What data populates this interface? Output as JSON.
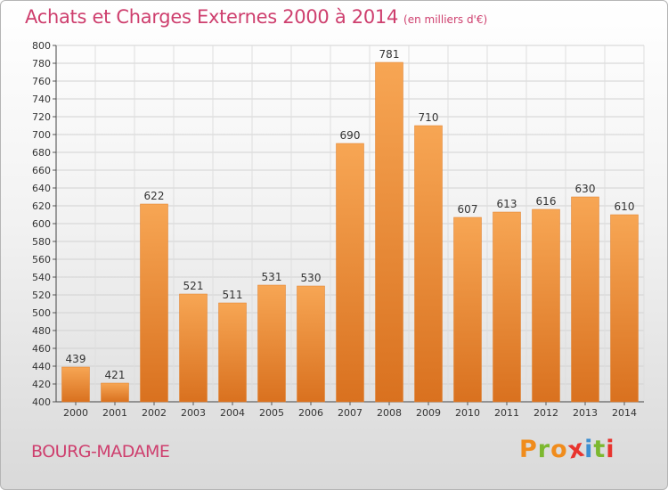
{
  "header": {
    "title": "Achats et Charges Externes 2000 à 2014",
    "subtitle": "(en milliers d'€)"
  },
  "footer": {
    "city": "BOURG-MADAME",
    "brand": "Proxiti",
    "brand_colors": [
      "#f08c1c",
      "#7cb82f",
      "#f08c1c",
      "#e8342e",
      "#3d8fd1",
      "#7cb82f",
      "#e8342e"
    ]
  },
  "chart_data": {
    "type": "bar",
    "title": "Achats et Charges Externes 2000 à 2014",
    "categories": [
      "2000",
      "2001",
      "2002",
      "2003",
      "2004",
      "2005",
      "2006",
      "2007",
      "2008",
      "2009",
      "2010",
      "2011",
      "2012",
      "2013",
      "2014"
    ],
    "values": [
      439,
      421,
      622,
      521,
      511,
      531,
      530,
      690,
      781,
      710,
      607,
      613,
      616,
      630,
      610
    ],
    "ylim": [
      400,
      800
    ],
    "yticks": [
      400,
      420,
      440,
      460,
      480,
      500,
      520,
      540,
      560,
      580,
      600,
      620,
      640,
      660,
      680,
      700,
      720,
      740,
      760,
      780,
      800
    ],
    "grid": true,
    "bar_color": "#f29a45"
  }
}
